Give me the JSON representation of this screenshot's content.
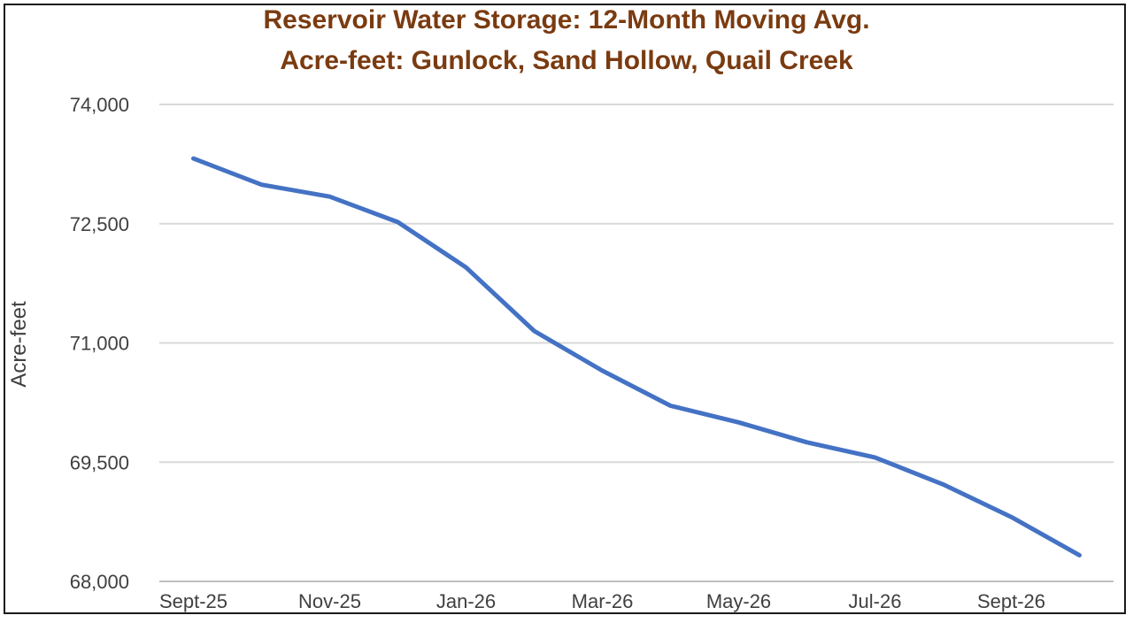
{
  "chart_data": {
    "type": "line",
    "title": "Reservoir Water Storage: 12-Month Moving Avg.",
    "subtitle": "Acre-feet: Gunlock, Sand Hollow, Quail Creek",
    "xlabel": "",
    "ylabel": "Acre-feet",
    "ylim": [
      68000,
      74000
    ],
    "yticks": [
      68000,
      69500,
      71000,
      72500,
      74000
    ],
    "ytick_labels": [
      "68,000",
      "69,500",
      "71,000",
      "72,500",
      "74,000"
    ],
    "categories": [
      "Sept-25",
      "Oct-25",
      "Nov-25",
      "Dec-25",
      "Jan-26",
      "Feb-26",
      "Mar-26",
      "Apr-26",
      "May-26",
      "Jun-26",
      "Jul-26",
      "Aug-26",
      "Sept-26",
      "Oct-26"
    ],
    "xtick_labels": [
      "Sept-25",
      "Nov-25",
      "Jan-26",
      "Mar-26",
      "May-26",
      "Jul-26",
      "Sept-26"
    ],
    "series": [
      {
        "values": [
          73320,
          72990,
          72840,
          72520,
          71950,
          71150,
          70650,
          70210,
          70000,
          69750,
          69560,
          69220,
          68810,
          68330
        ],
        "color": "#4472c4"
      }
    ],
    "grid": true,
    "legend": "none"
  }
}
